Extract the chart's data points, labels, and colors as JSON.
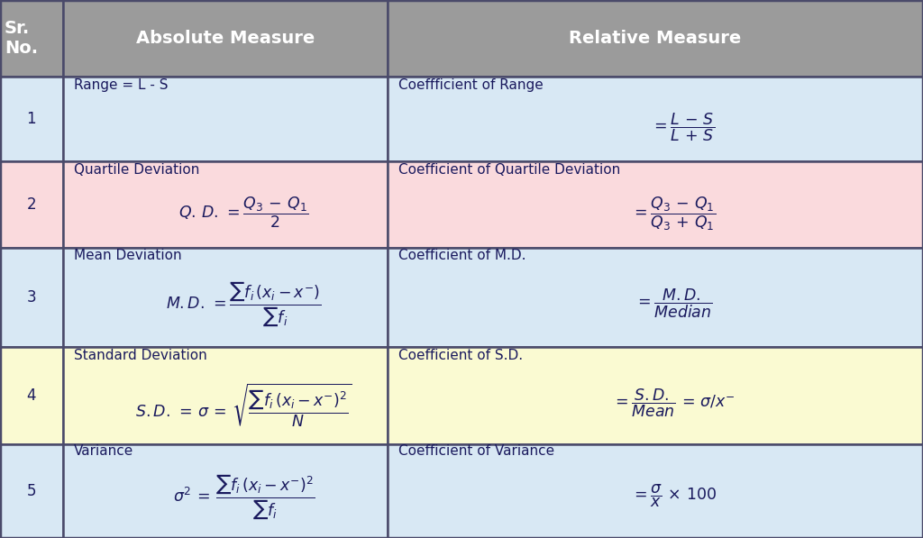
{
  "header_bg": "#9B9B9B",
  "header_text_color": "#FFFFFF",
  "row_colors": [
    "#D8E8F4",
    "#FADADD",
    "#D8E8F4",
    "#FAFAD2",
    "#D8E8F4"
  ],
  "border_color": "#4a4a6a",
  "text_color": "#1a1a5e",
  "col_bounds": [
    0.0,
    0.068,
    0.42,
    1.0
  ],
  "row_bounds": [
    1.0,
    0.858,
    0.7,
    0.54,
    0.355,
    0.175,
    0.0
  ],
  "header_fontsize": 14,
  "label_fontsize": 11,
  "formula_fontsize": 12.5
}
